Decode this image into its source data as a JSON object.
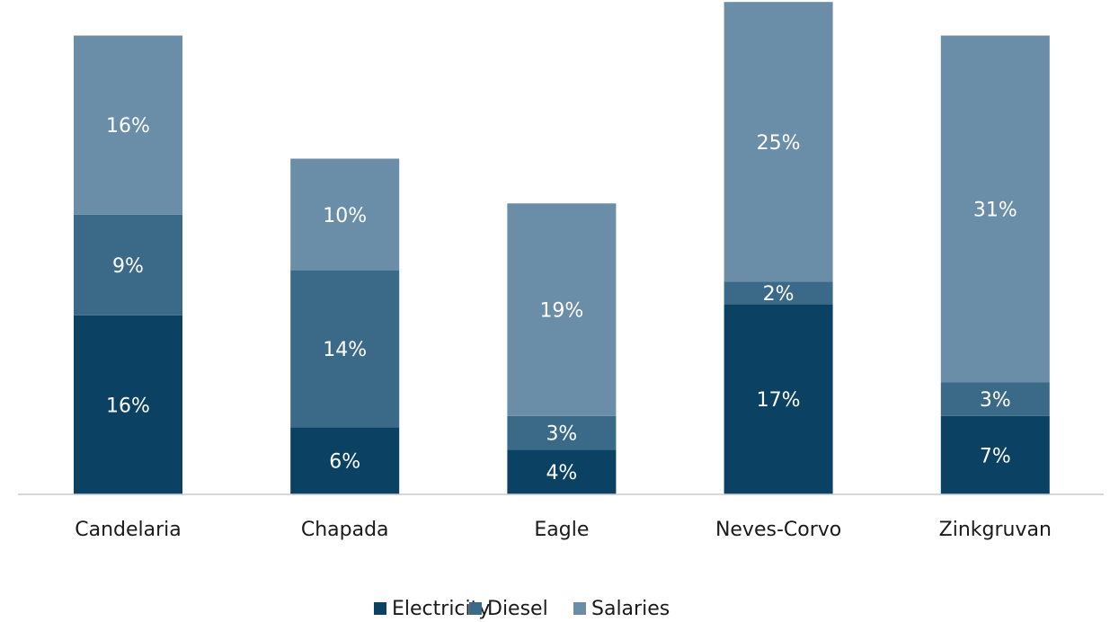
{
  "chart_data": {
    "type": "bar",
    "stacked": true,
    "categories": [
      "Candelaria",
      "Chapada",
      "Eagle",
      "Neves-Corvo",
      "Zinkgruvan"
    ],
    "series": [
      {
        "name": "Electricity",
        "color": "#0b4163",
        "values": [
          16,
          6,
          4,
          17,
          7
        ],
        "labels": [
          "16%",
          "6%",
          "4%",
          "17%",
          "7%"
        ]
      },
      {
        "name": "Diesel",
        "color": "#3b6a89",
        "values": [
          9,
          14,
          3,
          2,
          3
        ],
        "labels": [
          "9%",
          "14%",
          "3%",
          "2%",
          "3%"
        ]
      },
      {
        "name": "Salaries",
        "color": "#6a8ea7",
        "values": [
          16,
          10,
          19,
          25,
          31
        ],
        "labels": [
          "16%",
          "10%",
          "19%",
          "25%",
          "31%"
        ]
      }
    ],
    "ylim": [
      0,
      44
    ],
    "legend_position": "bottom-center",
    "grid": false,
    "axis_color": "#cccccc",
    "label_color": "#ffffff"
  }
}
